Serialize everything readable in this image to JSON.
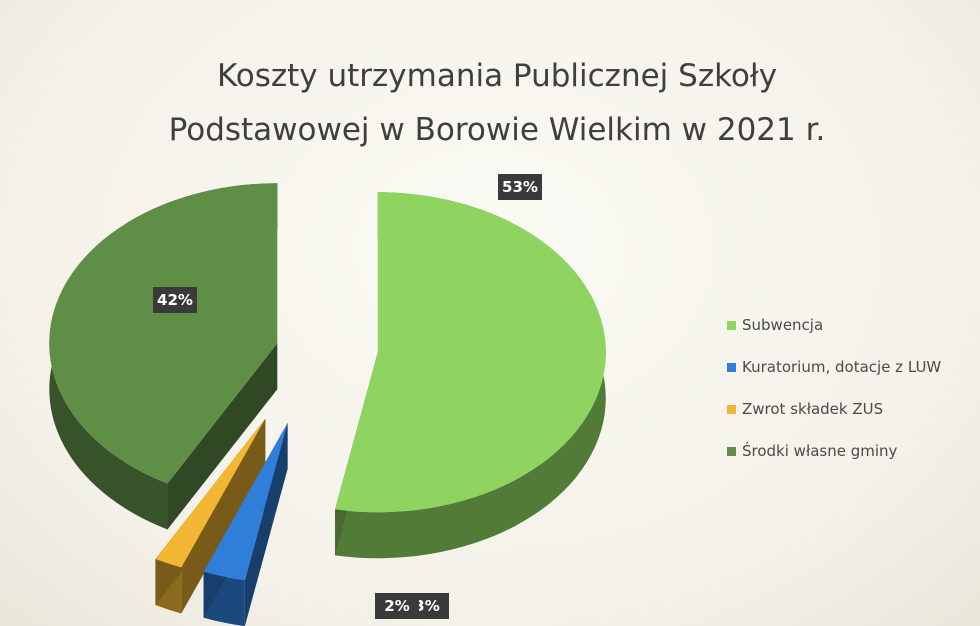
{
  "chart_data": {
    "type": "pie",
    "title_lines": [
      "Koszty utrzymania Publicznej Szkoły",
      "Podstawowej w Borowie Wielkim w 2021 r."
    ],
    "categories": [
      "Subwencja",
      "Kuratorium, dotacje z LUW",
      "Zwrot składek ZUS",
      "Środki własne gminy"
    ],
    "values": [
      53,
      3,
      2,
      42
    ],
    "data_labels": [
      "53%",
      "3%",
      "2%",
      "42%"
    ],
    "colors": [
      "#8fd461",
      "#2f7ed8",
      "#f2b632",
      "#5f8f47"
    ],
    "legend_position": "right",
    "style": "exploded-3d"
  }
}
